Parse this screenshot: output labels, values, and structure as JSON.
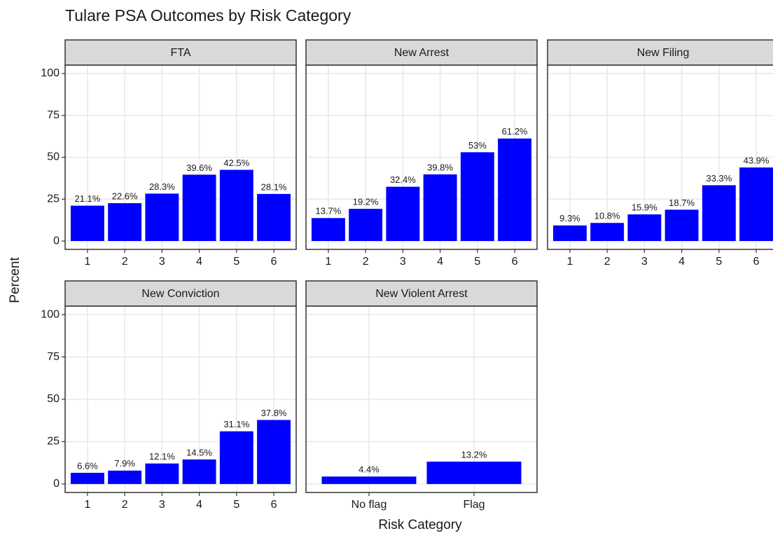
{
  "title": "Tulare PSA Outcomes by Risk Category",
  "x_label": "Risk Category",
  "y_label": "Percent",
  "chart_data": [
    {
      "type": "bar",
      "title": "FTA",
      "categories": [
        "1",
        "2",
        "3",
        "4",
        "5",
        "6"
      ],
      "values": [
        21.1,
        22.6,
        28.3,
        39.6,
        42.5,
        28.1
      ],
      "value_labels": [
        "21.1%",
        "22.6%",
        "28.3%",
        "39.6%",
        "42.5%",
        "28.1%"
      ],
      "color": "#0000ff",
      "ylim": [
        -5,
        105
      ],
      "yticks": [
        0,
        25,
        50,
        75,
        100
      ],
      "grid": true
    },
    {
      "type": "bar",
      "title": "New Arrest",
      "categories": [
        "1",
        "2",
        "3",
        "4",
        "5",
        "6"
      ],
      "values": [
        13.7,
        19.2,
        32.4,
        39.8,
        53,
        61.2
      ],
      "value_labels": [
        "13.7%",
        "19.2%",
        "32.4%",
        "39.8%",
        "53%",
        "61.2%"
      ],
      "color": "#0000ff",
      "ylim": [
        -5,
        105
      ],
      "yticks": [
        0,
        25,
        50,
        75,
        100
      ],
      "grid": true
    },
    {
      "type": "bar",
      "title": "New Filing",
      "categories": [
        "1",
        "2",
        "3",
        "4",
        "5",
        "6"
      ],
      "values": [
        9.3,
        10.8,
        15.9,
        18.7,
        33.3,
        43.9
      ],
      "value_labels": [
        "9.3%",
        "10.8%",
        "15.9%",
        "18.7%",
        "33.3%",
        "43.9%"
      ],
      "color": "#0000ff",
      "ylim": [
        -5,
        105
      ],
      "yticks": [
        0,
        25,
        50,
        75,
        100
      ],
      "grid": true
    },
    {
      "type": "bar",
      "title": "New Conviction",
      "categories": [
        "1",
        "2",
        "3",
        "4",
        "5",
        "6"
      ],
      "values": [
        6.6,
        7.9,
        12.1,
        14.5,
        31.1,
        37.8
      ],
      "value_labels": [
        "6.6%",
        "7.9%",
        "12.1%",
        "14.5%",
        "31.1%",
        "37.8%"
      ],
      "color": "#0000ff",
      "ylim": [
        -5,
        105
      ],
      "yticks": [
        0,
        25,
        50,
        75,
        100
      ],
      "grid": true
    },
    {
      "type": "bar",
      "title": "New Violent Arrest",
      "categories": [
        "No flag",
        "Flag"
      ],
      "values": [
        4.4,
        13.2
      ],
      "value_labels": [
        "4.4%",
        "13.2%"
      ],
      "color": "#0000ff",
      "ylim": [
        -5,
        105
      ],
      "yticks": [
        0,
        25,
        50,
        75,
        100
      ],
      "grid": true
    }
  ]
}
